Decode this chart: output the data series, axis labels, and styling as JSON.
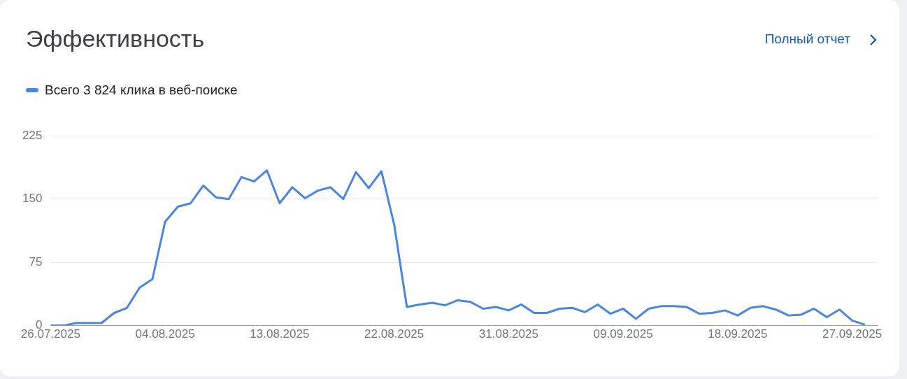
{
  "chart_data": {
    "type": "line",
    "title": "Эффективность",
    "annotations": [
      "Полный отчет"
    ],
    "legend": "top left",
    "grid": "y",
    "marker": "none",
    "line_style": "solid",
    "x": [
      "2025-07-26",
      "2025-07-27",
      "2025-07-28",
      "2025-07-29",
      "2025-07-30",
      "2025-07-31",
      "2025-08-01",
      "2025-08-02",
      "2025-08-03",
      "2025-08-04",
      "2025-08-05",
      "2025-08-06",
      "2025-08-07",
      "2025-08-08",
      "2025-08-09",
      "2025-08-10",
      "2025-08-11",
      "2025-08-12",
      "2025-08-13",
      "2025-08-14",
      "2025-08-15",
      "2025-08-16",
      "2025-08-17",
      "2025-08-18",
      "2025-08-19",
      "2025-08-20",
      "2025-08-21",
      "2025-08-22",
      "2025-08-23",
      "2025-08-24",
      "2025-08-25",
      "2025-08-26",
      "2025-08-27",
      "2025-08-28",
      "2025-08-29",
      "2025-08-30",
      "2025-08-31",
      "2025-09-01",
      "2025-09-02",
      "2025-09-03",
      "2025-09-04",
      "2025-09-05",
      "2025-09-06",
      "2025-09-07",
      "2025-09-08",
      "2025-09-09",
      "2025-09-10",
      "2025-09-11",
      "2025-09-12",
      "2025-09-13",
      "2025-09-14",
      "2025-09-15",
      "2025-09-16",
      "2025-09-17",
      "2025-09-18",
      "2025-09-19",
      "2025-09-20",
      "2025-09-21",
      "2025-09-22",
      "2025-09-23",
      "2025-09-24",
      "2025-09-25",
      "2025-09-26",
      "2025-09-27",
      "2025-09-28"
    ],
    "series": [
      {
        "name": "Всего 3 824 клика в веб-поиске",
        "color": "#4a86e0",
        "values": [
          0,
          0,
          3,
          3,
          3,
          15,
          21,
          45,
          55,
          123,
          141,
          145,
          166,
          152,
          150,
          176,
          171,
          184,
          145,
          164,
          151,
          160,
          164,
          150,
          182,
          163,
          183,
          120,
          22,
          25,
          27,
          24,
          30,
          28,
          20,
          22,
          18,
          25,
          15,
          15,
          20,
          21,
          16,
          25,
          14,
          20,
          8,
          20,
          23,
          23,
          22,
          14,
          15,
          18,
          12,
          21,
          23,
          19,
          12,
          13,
          20,
          10,
          19,
          6,
          1
        ]
      }
    ],
    "xlim": [
      "2025-07-26",
      "2025-09-29"
    ],
    "xticks": [
      {
        "value": "2025-07-26",
        "label": "26.07.2025"
      },
      {
        "value": "2025-08-04",
        "label": "04.08.2025"
      },
      {
        "value": "2025-08-13",
        "label": "13.08.2025"
      },
      {
        "value": "2025-08-22",
        "label": "22.08.2025"
      },
      {
        "value": "2025-08-31",
        "label": "31.08.2025"
      },
      {
        "value": "2025-09-09",
        "label": "09.09.2025"
      },
      {
        "value": "2025-09-18",
        "label": "18.09.2025"
      },
      {
        "value": "2025-09-27",
        "label": "27.09.2025"
      }
    ],
    "ylim": [
      0,
      225
    ],
    "yticks": [
      0,
      75,
      150,
      225
    ]
  }
}
